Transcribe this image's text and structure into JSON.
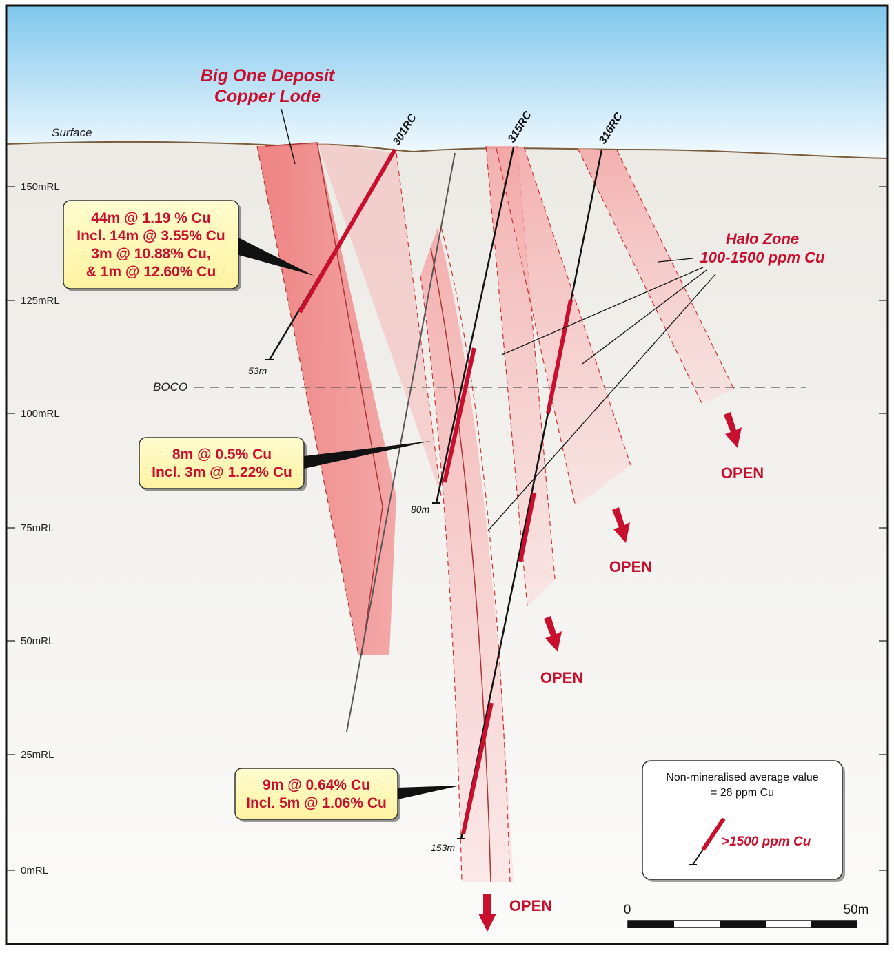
{
  "title": {
    "line1": "Big One Deposit",
    "line2": "Copper Lode"
  },
  "surface_label": "Surface",
  "boco_label": "BOCO",
  "halo_label": {
    "line1": "Halo Zone",
    "line2": "100-1500 ppm Cu"
  },
  "rl_labels": [
    "150mRL",
    "125mRL",
    "100mRL",
    "75mRL",
    "50mRL",
    "25mRL",
    "0mRL"
  ],
  "drillholes": [
    {
      "id": "301RC",
      "depth": "53m"
    },
    {
      "id": "315RC",
      "depth": "80m"
    },
    {
      "id": "316RC",
      "depth": "153m"
    }
  ],
  "callouts": {
    "c1": [
      "44m @ 1.19 % Cu",
      "Incl. 14m @ 3.55% Cu",
      "3m @ 10.88% Cu,",
      "& 1m @ 12.60% Cu"
    ],
    "c2": [
      "8m @ 0.5% Cu",
      "Incl. 3m @ 1.22% Cu"
    ],
    "c3": [
      "9m @ 0.64% Cu",
      "Incl. 5m @ 1.06% Cu"
    ]
  },
  "open_label": "OPEN",
  "legend": {
    "line1": "Non-mineralised average value",
    "line2": "= 28 ppm Cu",
    "high_grade": ">1500 ppm Cu"
  },
  "scale": {
    "start": "0",
    "end": "50m"
  },
  "colors": {
    "accent": "#c8102e",
    "callout_fill": "#fff9b8",
    "sky_top": "#7fc7ec"
  }
}
